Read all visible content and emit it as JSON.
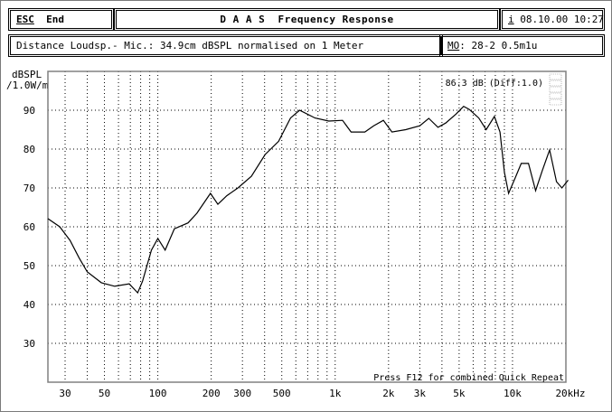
{
  "header": {
    "esc_key": "ESC",
    "esc_label": "End",
    "title": "D A A S  Frequency Response",
    "info_key": "i",
    "datetime": "08.10.00 10:27"
  },
  "subheader": {
    "description": "Distance Loudsp.- Mic.: 34.9cm dBSPL normalised on 1 Meter",
    "mo_key": "MO",
    "mo_value": ": 28-2 0.5m1u"
  },
  "chart_data": {
    "type": "line",
    "ylabel": "dBSPL",
    "ylabel_unit": "/1.0W/m",
    "x_scale": "log",
    "xlim": [
      24,
      20000
    ],
    "ylim": [
      20,
      100
    ],
    "grid": true,
    "y_ticks": [
      "90",
      "80",
      "70",
      "60",
      "50",
      "40",
      "30"
    ],
    "y_tick_values": [
      90,
      80,
      70,
      60,
      50,
      40,
      30
    ],
    "x_ticks": [
      "30",
      "50",
      "100",
      "200",
      "300",
      "500",
      "1k",
      "2k",
      "3k",
      "5k",
      "10k",
      "20kHz"
    ],
    "x_tick_values": [
      30,
      50,
      100,
      200,
      300,
      500,
      1000,
      2000,
      3000,
      5000,
      10000,
      20000
    ],
    "annotation": "86.3 dB (Diff:1.0)",
    "footer_note": "Press F12 for combined Quick Repeat",
    "line_color": "#000000",
    "x": [
      24,
      28,
      32,
      36,
      40,
      48,
      57,
      69,
      77,
      82,
      92,
      100,
      110,
      124,
      148,
      166,
      198,
      218,
      245,
      283,
      337,
      403,
      480,
      560,
      630,
      770,
      920,
      1100,
      1230,
      1470,
      1650,
      1870,
      2090,
      2500,
      3000,
      3370,
      3800,
      4200,
      4800,
      5300,
      5700,
      6450,
      7100,
      7900,
      8500,
      9000,
      9500,
      10400,
      11200,
      12300,
      13500,
      14700,
      16200,
      17700,
      19000,
      20600
    ],
    "y": [
      62.1,
      60,
      56.5,
      52,
      48.4,
      45.6,
      44.7,
      45.3,
      43,
      46,
      54,
      57,
      54,
      59.5,
      61,
      63.5,
      68.6,
      65.8,
      68,
      70,
      73,
      78.6,
      82,
      88,
      90,
      88,
      87.2,
      87.4,
      84.4,
      84.4,
      86,
      87.4,
      84.4,
      85,
      86,
      87.9,
      85.6,
      86.7,
      89,
      91,
      90.2,
      88,
      85,
      88.4,
      84.4,
      74,
      68.6,
      72.8,
      76.3,
      76.3,
      69.3,
      74.4,
      79.8,
      71.6,
      70,
      72
    ]
  }
}
